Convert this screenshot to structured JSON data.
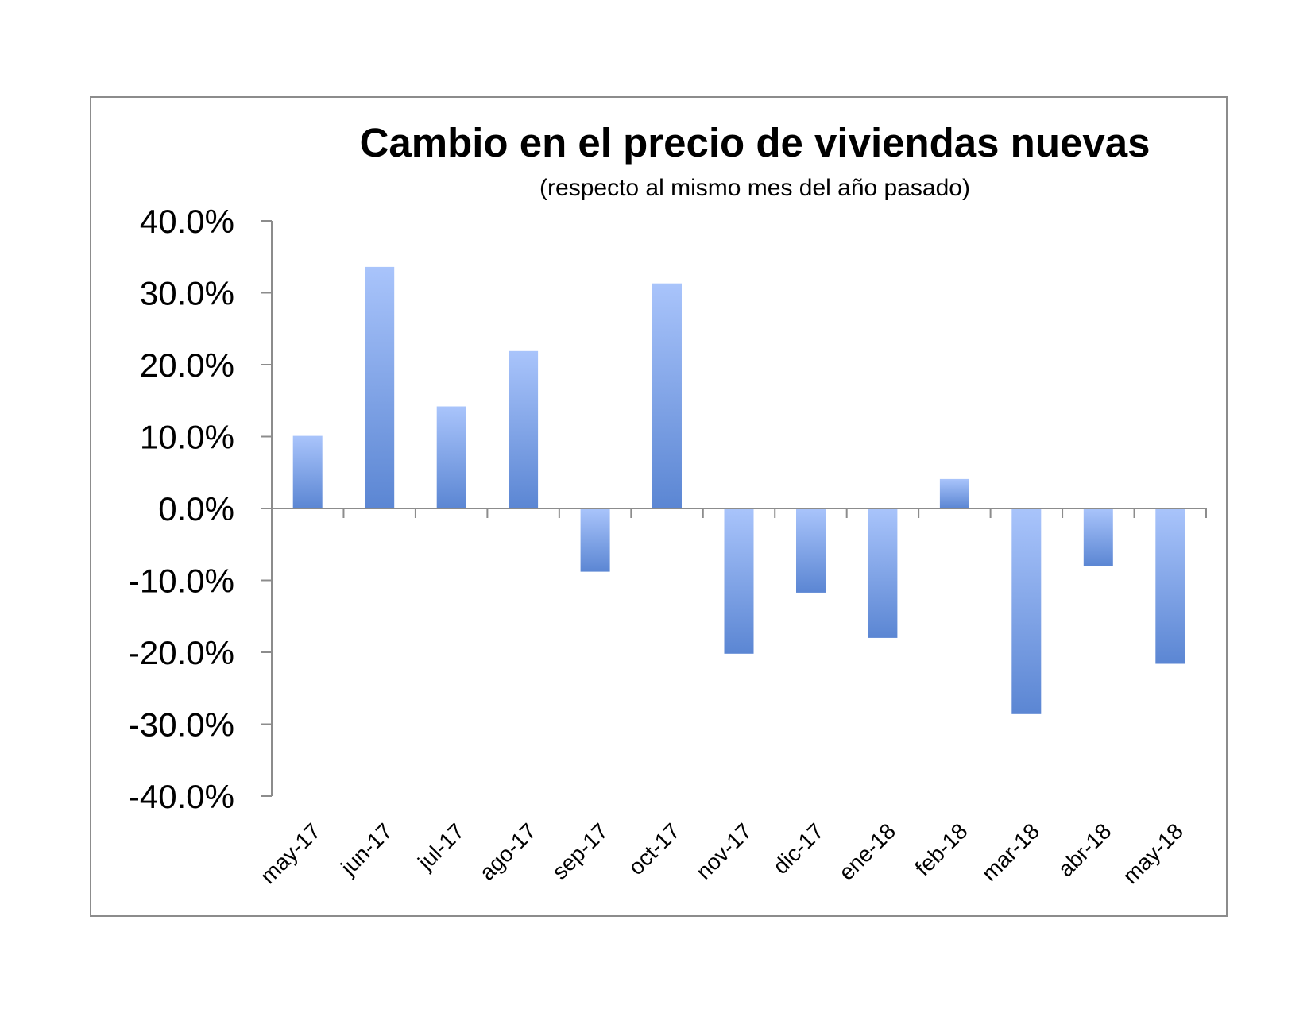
{
  "chart_data": {
    "type": "bar",
    "title": "Cambio en el precio de viviendas nuevas",
    "subtitle": "(respecto al mismo mes del año pasado)",
    "xlabel": "",
    "ylabel": "",
    "ylim": [
      -40,
      40
    ],
    "yticks": [
      40,
      30,
      20,
      10,
      0,
      -10,
      -20,
      -30,
      -40
    ],
    "ytick_labels": [
      "40.0%",
      "30.0%",
      "20.0%",
      "10.0%",
      "0.0%",
      "-10.0%",
      "-20.0%",
      "-30.0%",
      "-40.0%"
    ],
    "categories": [
      "may-17",
      "jun-17",
      "jul-17",
      "ago-17",
      "sep-17",
      "oct-17",
      "nov-17",
      "dic-17",
      "ene-18",
      "feb-18",
      "mar-18",
      "abr-18",
      "may-18"
    ],
    "values": [
      10.1,
      33.6,
      14.2,
      21.9,
      -8.8,
      31.3,
      -20.2,
      -11.7,
      -18.0,
      4.1,
      -28.6,
      -8.0,
      -21.6
    ],
    "grid": false,
    "legend": "none",
    "colors": {
      "bar_top": "#a9c4fb",
      "bar_bottom": "#5b86d3",
      "axis": "#8c8c8c",
      "frame": "#8c8c8c"
    }
  }
}
